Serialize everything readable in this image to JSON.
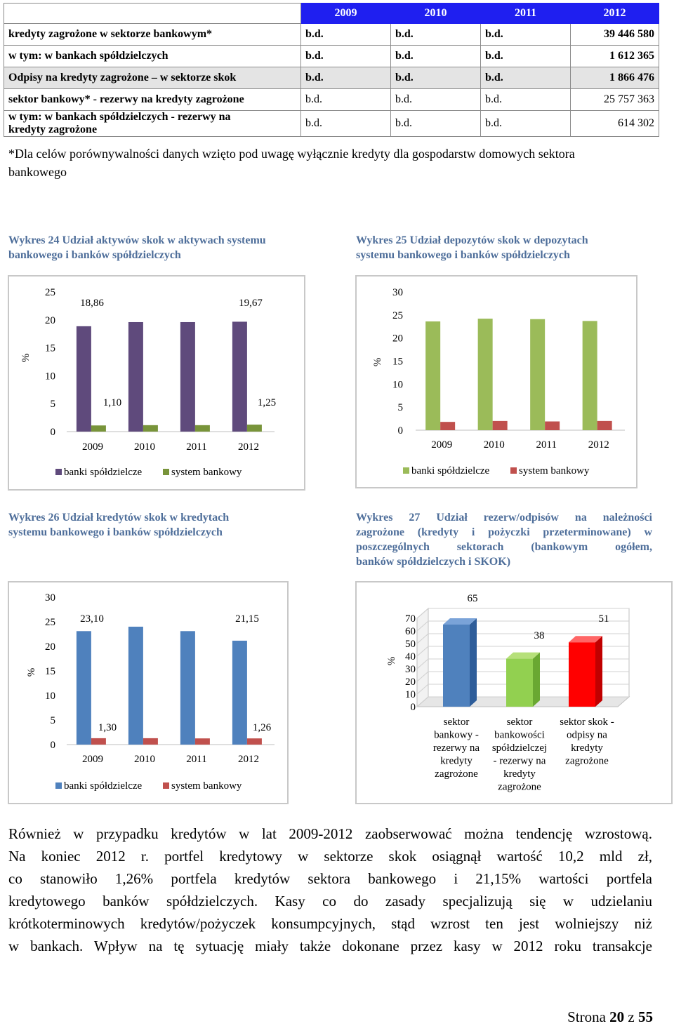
{
  "table": {
    "years": [
      "2009",
      "2010",
      "2011",
      "2012"
    ],
    "rows": [
      {
        "label": "kredyty zagrożone w sektorze bankowym*",
        "values": [
          "b.d.",
          "b.d.",
          "b.d.",
          "39 446 580"
        ]
      },
      {
        "label": "w tym: w bankach spółdzielczych",
        "values": [
          "b.d.",
          "b.d.",
          "b.d.",
          "1 612 365"
        ]
      },
      {
        "label": "Odpisy na kredyty zagrożone – w sektorze skok",
        "values": [
          "b.d.",
          "b.d.",
          "b.d.",
          "1 866 476"
        ]
      },
      {
        "label": "sektor bankowy* - rezerwy na kredyty zagrożone",
        "values": [
          "b.d.",
          "b.d.",
          "b.d.",
          "25 757 363"
        ]
      },
      {
        "label_line1": "w tym: w bankach spółdzielczych - rezerwy na",
        "label_line2": "kredyty zagrożone",
        "values": [
          "b.d.",
          "b.d.",
          "b.d.",
          "614 302"
        ]
      }
    ],
    "footnote_line1": "*Dla celów porównywalności danych wzięto pod uwagę wyłącznie kredyty dla gospodarstw domowych sektora",
    "footnote_line2": "bankowego"
  },
  "captions": {
    "c24_l1": "Wykres 24 Udział aktywów skok w aktywach systemu",
    "c24_l2": "bankowego i banków spółdzielczych",
    "c25_l1": "Wykres 25 Udział depozytów skok w depozytach",
    "c25_l2": "systemu bankowego i banków spółdzielczych",
    "c26_l1": "Wykres 26 Udział kredytów skok w kredytach",
    "c26_l2": "systemu bankowego i banków spółdzielczych",
    "c27_l1": "Wykres 27 Udział rezerw/odpisów na należności",
    "c27_l2": "zagrożone (kredyty i pożyczki przeterminowane) w",
    "c27_l3": "poszczególnych sektorach (bankowym ogółem,",
    "c27_l4": "banków spółdzielczych i SKOK)"
  },
  "colors": {
    "purple": "#5f4a7c",
    "olive": "#78943a",
    "green": "#9bbb59",
    "red": "#c0504d",
    "blue": "#4f81bd",
    "caption": "#4e6e9a"
  },
  "chart_data": [
    {
      "type": "bar",
      "ylabel": "%",
      "ylim": [
        0,
        25
      ],
      "yticks": [
        0,
        5,
        10,
        15,
        20,
        25
      ],
      "categories": [
        "2009",
        "2010",
        "2011",
        "2012"
      ],
      "series": [
        {
          "name": "banki spółdzielcze",
          "values": [
            18.86,
            19.6,
            19.6,
            19.67
          ],
          "labels": [
            "18,86",
            "",
            "",
            "19,67"
          ]
        },
        {
          "name": "system bankowy",
          "values": [
            1.1,
            1.15,
            1.15,
            1.25
          ],
          "labels": [
            "1,10",
            "",
            "",
            "1,25"
          ]
        }
      ],
      "legend": "bottom"
    },
    {
      "type": "bar",
      "ylabel": "%",
      "ylim": [
        0,
        30
      ],
      "yticks": [
        0,
        5,
        10,
        15,
        20,
        25,
        30
      ],
      "categories": [
        "2009",
        "2010",
        "2011",
        "2012"
      ],
      "series": [
        {
          "name": "banki spółdzielcze",
          "values": [
            23.6,
            24.2,
            24.1,
            23.7
          ]
        },
        {
          "name": "system bankowy",
          "values": [
            1.8,
            2.0,
            1.9,
            2.0
          ]
        }
      ],
      "legend": "bottom"
    },
    {
      "type": "bar",
      "ylabel": "%",
      "ylim": [
        0,
        30
      ],
      "yticks": [
        0,
        5,
        10,
        15,
        20,
        25,
        30
      ],
      "categories": [
        "2009",
        "2010",
        "2011",
        "2012"
      ],
      "series": [
        {
          "name": "banki spółdzielcze",
          "values": [
            23.1,
            24.0,
            23.1,
            21.15
          ],
          "labels": [
            "23,10",
            "",
            "",
            "21,15"
          ]
        },
        {
          "name": "system bankowy",
          "values": [
            1.3,
            1.3,
            1.26,
            1.26
          ],
          "labels": [
            "1,30",
            "",
            "",
            "1,26"
          ]
        }
      ],
      "legend": "bottom"
    },
    {
      "type": "bar",
      "ylabel": "%",
      "ylim": [
        0,
        70
      ],
      "yticks": [
        0,
        10,
        20,
        30,
        40,
        50,
        60,
        70
      ],
      "categories": [
        [
          "sektor",
          "bankowy -",
          "rezerwy na",
          "kredyty",
          "zagrożone"
        ],
        [
          "sektor",
          "bankowości",
          "spółdzielczej",
          "- rezerwy na",
          "kredyty",
          "zagrożone"
        ],
        [
          "sektor skok -",
          "odpisy na",
          "kredyty",
          "zagrożone"
        ]
      ],
      "values": [
        65,
        38,
        51
      ],
      "labels": [
        "65",
        "38",
        "51"
      ],
      "bar_colors": [
        "#4f81bd",
        "#92d050",
        "#ff0000"
      ]
    }
  ],
  "paragraph_lines": [
    "Również w przypadku kredytów w lat 2009-2012 zaobserwować można tendencję wzrostową.",
    "Na koniec 2012 r. portfel kredytowy w sektorze skok osiągnął wartość 10,2 mld zł,",
    "co stanowiło 1,26% portfela kredytów sektora bankowego i 21,15% wartości portfela",
    "kredytowego banków spółdzielczych. Kasy co do zasady specjalizują się w udzielaniu",
    "krótkoterminowych kredytów/pożyczek konsumpcyjnych, stąd wzrost ten jest wolniejszy niż",
    "w bankach. Wpływ na tę sytuację miały także dokonane przez kasy w 2012 roku transakcje"
  ],
  "footer": {
    "prefix": "Strona ",
    "page": "20",
    "mid": " z ",
    "total": "55"
  }
}
